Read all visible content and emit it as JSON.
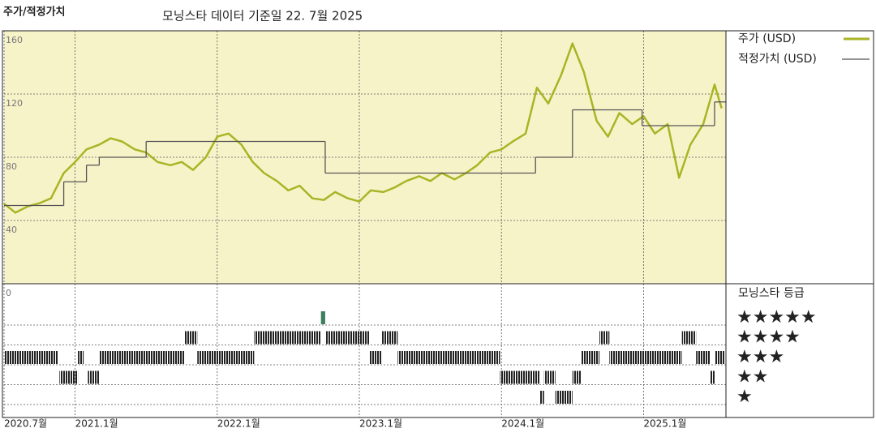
{
  "chart_data": [
    {
      "type": "line",
      "title": "주가/적정가치",
      "subtitle": "모닝스타 데이터 기준일 22. 7월 2025",
      "xlim": [
        2020.5,
        2025.58
      ],
      "xticks": [
        {
          "value": 2020.5,
          "label": "2020.7월"
        },
        {
          "value": 2021.0,
          "label": "2021.1월"
        },
        {
          "value": 2022.0,
          "label": "2022.1월"
        },
        {
          "value": 2023.0,
          "label": "2023.1월"
        },
        {
          "value": 2024.0,
          "label": "2024.1월"
        },
        {
          "value": 2025.0,
          "label": "2025.1월"
        }
      ],
      "ylim": [
        0,
        160
      ],
      "yticks": [
        0,
        40,
        80,
        120,
        160
      ],
      "grid": true,
      "background": "#f7f3c9",
      "series": [
        {
          "name": "주가 (USD)",
          "color": "#a9b425",
          "style": "line",
          "x": [
            2020.5,
            2020.58,
            2020.67,
            2020.75,
            2020.83,
            2020.92,
            2021.0,
            2021.08,
            2021.17,
            2021.25,
            2021.33,
            2021.42,
            2021.5,
            2021.58,
            2021.67,
            2021.75,
            2021.83,
            2021.92,
            2022.0,
            2022.08,
            2022.17,
            2022.25,
            2022.33,
            2022.42,
            2022.5,
            2022.58,
            2022.67,
            2022.75,
            2022.83,
            2022.92,
            2023.0,
            2023.08,
            2023.17,
            2023.25,
            2023.33,
            2023.42,
            2023.5,
            2023.58,
            2023.67,
            2023.75,
            2023.83,
            2023.92,
            2024.0,
            2024.08,
            2024.17,
            2024.25,
            2024.33,
            2024.42,
            2024.5,
            2024.58,
            2024.67,
            2024.75,
            2024.83,
            2024.92,
            2025.0,
            2025.08,
            2025.17,
            2025.25,
            2025.33,
            2025.42,
            2025.5,
            2025.55
          ],
          "values": [
            50.6,
            45,
            49,
            51,
            54,
            70,
            77,
            85,
            88,
            92,
            90,
            85,
            83,
            77,
            75,
            77,
            72,
            80,
            93,
            95,
            88,
            77,
            70,
            65,
            59,
            62,
            54,
            53,
            58,
            54,
            52,
            59,
            58,
            61,
            65,
            68,
            65,
            70,
            66,
            70,
            75,
            83,
            85,
            90,
            95,
            124,
            114,
            132,
            152,
            134,
            103,
            93,
            108,
            101,
            106,
            95,
            101,
            67,
            88,
            101,
            126,
            111
          ]
        },
        {
          "name": "적정가치 (USD)",
          "color": "#555555",
          "style": "step",
          "x": [
            2020.5,
            2020.92,
            2021.08,
            2021.17,
            2021.5,
            2022.76,
            2024.24,
            2024.5,
            2024.99,
            2025.5
          ],
          "values": [
            49.5,
            64.5,
            75,
            80,
            90,
            70,
            80,
            110,
            100,
            115
          ]
        }
      ]
    },
    {
      "type": "timeline",
      "title": "모닝스타 등급",
      "categories": [
        "★",
        "★★",
        "★★★",
        "★★★★",
        "★★★★★"
      ],
      "colors": [
        "#222222",
        "#222222",
        "#222222",
        "#222222",
        "#3f7f5f"
      ],
      "segments": [
        {
          "start": 2020.5,
          "end": 2020.88,
          "rating": 3
        },
        {
          "start": 2020.89,
          "end": 2021.02,
          "rating": 2
        },
        {
          "start": 2021.02,
          "end": 2021.06,
          "rating": 3
        },
        {
          "start": 2021.09,
          "end": 2021.17,
          "rating": 2
        },
        {
          "start": 2021.17,
          "end": 2021.77,
          "rating": 3
        },
        {
          "start": 2021.77,
          "end": 2021.86,
          "rating": 4
        },
        {
          "start": 2021.86,
          "end": 2022.26,
          "rating": 3
        },
        {
          "start": 2022.26,
          "end": 2022.73,
          "rating": 4
        },
        {
          "start": 2022.73,
          "end": 2022.76,
          "rating": 5
        },
        {
          "start": 2022.76,
          "end": 2023.07,
          "rating": 4
        },
        {
          "start": 2023.07,
          "end": 2023.16,
          "rating": 3
        },
        {
          "start": 2023.16,
          "end": 2023.27,
          "rating": 4
        },
        {
          "start": 2023.27,
          "end": 2023.99,
          "rating": 3
        },
        {
          "start": 2023.99,
          "end": 2024.27,
          "rating": 2
        },
        {
          "start": 2024.27,
          "end": 2024.3,
          "rating": 1
        },
        {
          "start": 2024.3,
          "end": 2024.38,
          "rating": 2
        },
        {
          "start": 2024.38,
          "end": 2024.5,
          "rating": 1
        },
        {
          "start": 2024.5,
          "end": 2024.56,
          "rating": 2
        },
        {
          "start": 2024.56,
          "end": 2024.69,
          "rating": 3
        },
        {
          "start": 2024.69,
          "end": 2024.76,
          "rating": 4
        },
        {
          "start": 2024.76,
          "end": 2025.27,
          "rating": 3
        },
        {
          "start": 2025.27,
          "end": 2025.37,
          "rating": 4
        },
        {
          "start": 2025.37,
          "end": 2025.47,
          "rating": 3
        },
        {
          "start": 2025.47,
          "end": 2025.5,
          "rating": 2
        },
        {
          "start": 2025.5,
          "end": 2025.57,
          "rating": 3
        }
      ]
    }
  ]
}
